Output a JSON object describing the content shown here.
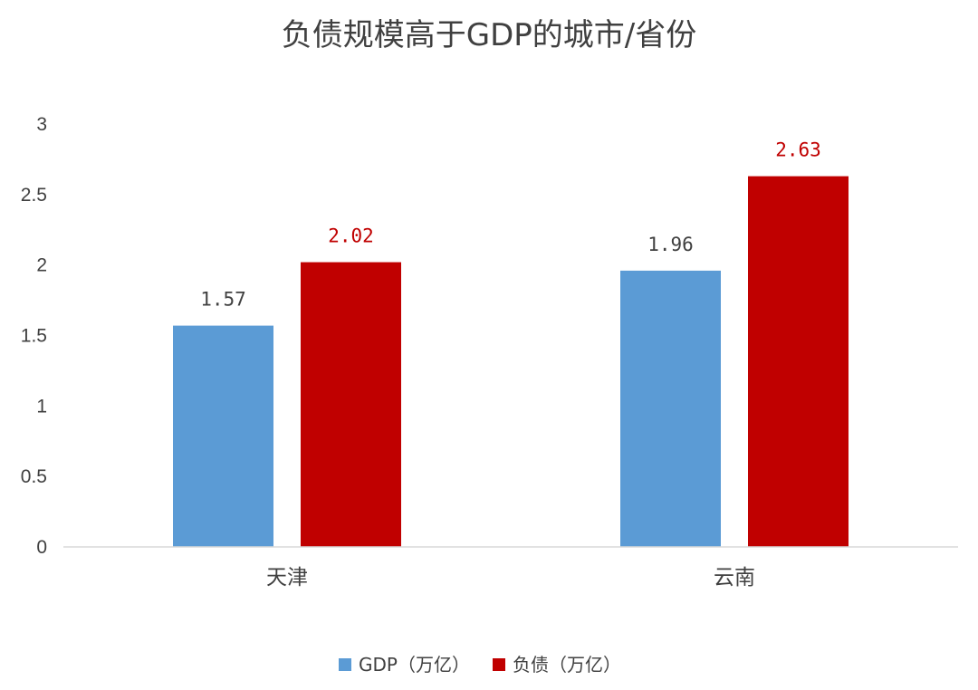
{
  "chart_data": {
    "type": "bar",
    "title": "负债规模高于GDP的城市/省份",
    "categories": [
      "天津",
      "云南"
    ],
    "series": [
      {
        "name": "GDP（万亿）",
        "values": [
          1.57,
          1.96
        ],
        "color": "#5B9BD5",
        "label_color": "#404040"
      },
      {
        "name": "负债（万亿）",
        "values": [
          2.02,
          2.63
        ],
        "color": "#C00000",
        "label_color": "#C00000"
      }
    ],
    "yticks": [
      "0",
      "0.5",
      "1",
      "1.5",
      "2",
      "2.5",
      "3"
    ],
    "ylim": [
      0,
      3
    ],
    "xlabel": "",
    "ylabel": "",
    "grid": false,
    "legend_position": "bottom"
  }
}
